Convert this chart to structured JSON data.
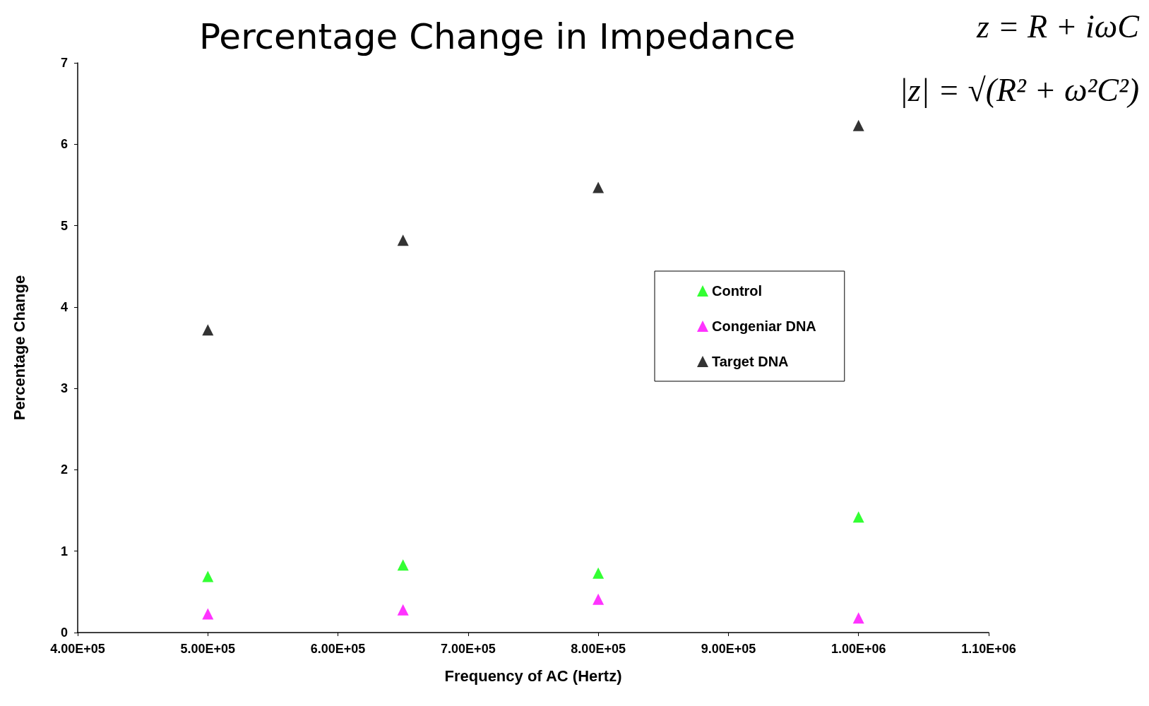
{
  "chart_data": {
    "type": "scatter",
    "title": "Percentage Change in Impedance",
    "xlabel": "Frequency of AC (Hertz)",
    "ylabel": "Percentage Change",
    "annotations": [
      "z = R + iωC",
      "|z| = √(R² + ω²C²)"
    ],
    "x": [
      500000,
      650000,
      800000,
      1000000
    ],
    "series": [
      {
        "name": "Control",
        "color": "#00ff00",
        "values": [
          0.69,
          0.83,
          0.73,
          1.42
        ]
      },
      {
        "name": "Congeniar DNA",
        "color": "#ff00ff",
        "values": [
          0.23,
          0.28,
          0.41,
          0.18
        ]
      },
      {
        "name": "Target DNA",
        "color": "#000000",
        "values": [
          3.72,
          4.82,
          5.47,
          6.23
        ]
      }
    ],
    "xlim": [
      400000,
      1100000
    ],
    "xticks": [
      {
        "value": 400000,
        "label": "4.00E+05"
      },
      {
        "value": 500000,
        "label": "5.00E+05"
      },
      {
        "value": 600000,
        "label": "6.00E+05"
      },
      {
        "value": 700000,
        "label": "7.00E+05"
      },
      {
        "value": 800000,
        "label": "8.00E+05"
      },
      {
        "value": 900000,
        "label": "9.00E+05"
      },
      {
        "value": 1000000,
        "label": "1.00E+06"
      },
      {
        "value": 1100000,
        "label": "1.10E+06"
      }
    ],
    "ylim": [
      0,
      7
    ],
    "yticks": [
      0,
      1,
      2,
      3,
      4,
      5,
      6,
      7
    ],
    "grid": false,
    "legend": "right",
    "marker": "triangle"
  }
}
